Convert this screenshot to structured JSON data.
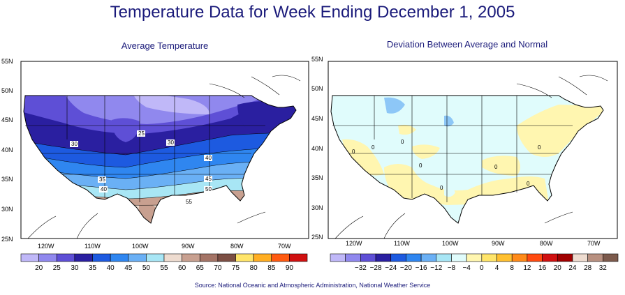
{
  "title": "Temperature Data for Week Ending December 1, 2005",
  "source": "Source:  National Oceanic and Atmospheric Administration, National Weather Service",
  "left_map": {
    "subtitle": "Average Temperature",
    "lat_labels": [
      "55N",
      "50N",
      "45N",
      "40N",
      "35N",
      "30N",
      "25N"
    ],
    "lon_labels": [
      "120W",
      "110W",
      "100W",
      "90W",
      "80W",
      "70W"
    ],
    "contour_labels": [
      "25",
      "30",
      "30",
      "35",
      "40",
      "40",
      "45",
      "50",
      "55"
    ],
    "legend_colors": [
      "#c0b8f8",
      "#9088ee",
      "#5e4fd6",
      "#2a1fa0",
      "#1d5ae0",
      "#2f86f0",
      "#6ab0f5",
      "#a8e6f5",
      "#eedcd0",
      "#c8a090",
      "#a47466",
      "#7c4f44",
      "#ffe56a",
      "#ffae22",
      "#ff5a10",
      "#d01010"
    ],
    "legend_ticks": [
      "20",
      "25",
      "30",
      "35",
      "40",
      "45",
      "50",
      "55",
      "60",
      "65",
      "70",
      "75",
      "80",
      "85",
      "90"
    ]
  },
  "right_map": {
    "subtitle": "Deviation Between Average and Normal",
    "lat_labels": [
      "55N",
      "50N",
      "45N",
      "40N",
      "35N",
      "30N",
      "25N"
    ],
    "lon_labels": [
      "120W",
      "110W",
      "100W",
      "90W",
      "80W",
      "70W"
    ],
    "contour_labels": [
      "0",
      "0",
      "0",
      "0",
      "0",
      "0",
      "0",
      "0"
    ],
    "legend_colors": [
      "#c0b8f8",
      "#9088ee",
      "#5e4fd6",
      "#2a1fa0",
      "#1d5ae0",
      "#2f86f0",
      "#6ab0f5",
      "#a8e6f5",
      "#e0fcfc",
      "#fff6b0",
      "#ffe56a",
      "#ffc030",
      "#ff8a18",
      "#ff4a10",
      "#d01010",
      "#a00000",
      "#eedcd0",
      "#b89080",
      "#7c5a4c"
    ],
    "legend_ticks": [
      "−32",
      "−28",
      "−24",
      "−20",
      "−16",
      "−12",
      "−8",
      "−4",
      "0",
      "4",
      "8",
      "12",
      "16",
      "20",
      "24",
      "28",
      "32"
    ]
  }
}
